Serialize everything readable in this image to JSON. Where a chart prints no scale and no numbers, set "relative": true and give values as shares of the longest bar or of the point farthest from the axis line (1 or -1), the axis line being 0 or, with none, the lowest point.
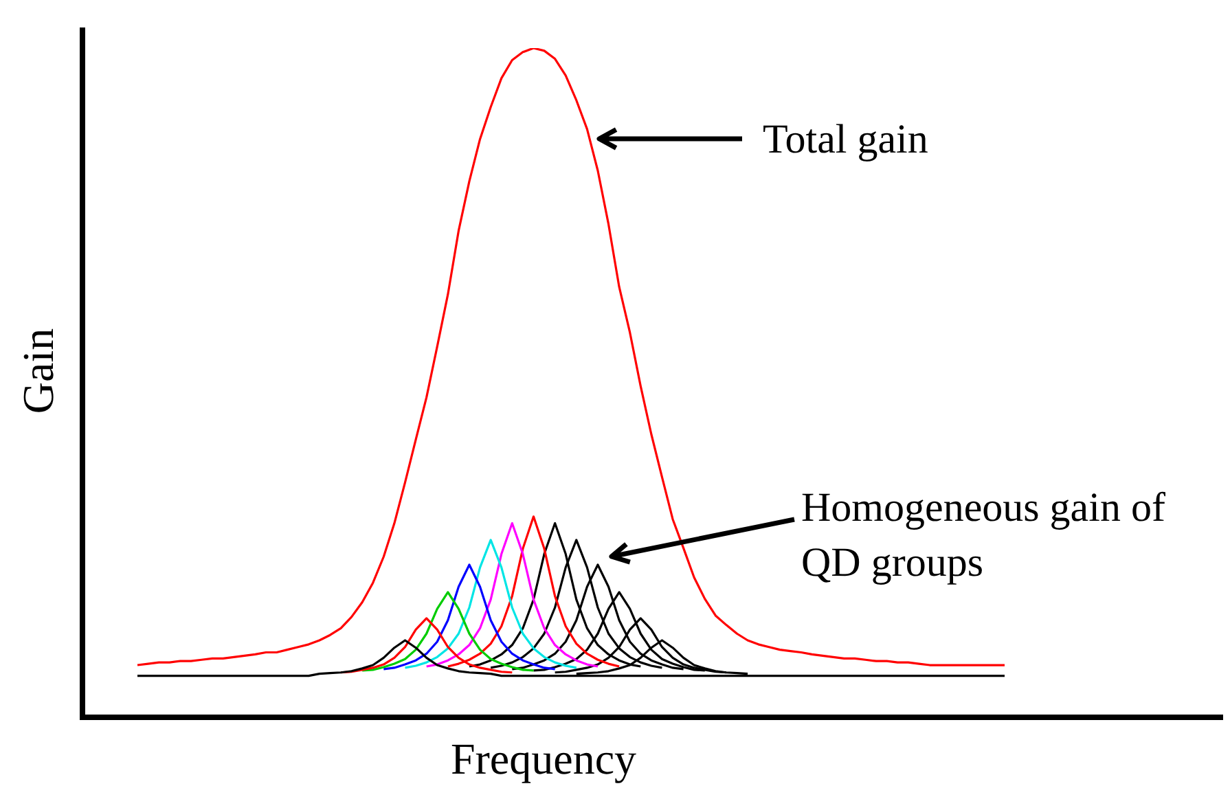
{
  "chart_data": {
    "type": "line",
    "relative": true,
    "xlabel": "Frequency",
    "ylabel": "Gain",
    "annotations": [
      "Total gain",
      "Homogeneous gain of QD groups"
    ],
    "categories": [
      null,
      null,
      null,
      null,
      null,
      null,
      null,
      null,
      null,
      null,
      null,
      null,
      null,
      null,
      null,
      null,
      null,
      null,
      null,
      null,
      null,
      null,
      null,
      null,
      null,
      null,
      null,
      null,
      null,
      null,
      null,
      null,
      null,
      null,
      null,
      null,
      null,
      null,
      null,
      null,
      null,
      null,
      null,
      null,
      null,
      null,
      null,
      null,
      null,
      null,
      null,
      null,
      null,
      null,
      null,
      null,
      null,
      null,
      null,
      null,
      null,
      null,
      null,
      null,
      null,
      null,
      null,
      null,
      null,
      null,
      null,
      null,
      null,
      null,
      null,
      null,
      null,
      null,
      null,
      null,
      null,
      null
    ],
    "series": [
      {
        "color": "#000000",
        "values": [
          0.062,
          0.062,
          0.062,
          0.062,
          0.062,
          0.062,
          0.062,
          0.062,
          0.062,
          0.062,
          0.062,
          0.062,
          0.062,
          0.062,
          0.062,
          0.062,
          0.062,
          0.065,
          0.066,
          0.067,
          0.069,
          0.073,
          0.078,
          0.089,
          0.104,
          0.115,
          0.104,
          0.089,
          0.078,
          0.073,
          0.069,
          0.067,
          0.066,
          0.065,
          0.062,
          0.062,
          0.062,
          0.062,
          0.062,
          0.062,
          0.062,
          0.062,
          0.062,
          0.062,
          0.062,
          0.062,
          0.062,
          0.062,
          0.062,
          0.062,
          0.062,
          0.062,
          0.062,
          0.062,
          0.062,
          0.062,
          0.062,
          0.062,
          0.062,
          0.062,
          0.062,
          0.062,
          0.062,
          0.062,
          0.062,
          0.062,
          0.062,
          0.062,
          0.062,
          0.062,
          0.062,
          0.062,
          0.062,
          0.062,
          0.062,
          0.062,
          0.062,
          0.062,
          0.062,
          0.062,
          0.062,
          0.062
        ]
      },
      {
        "color": "#ff0000",
        "values": [
          null,
          null,
          null,
          null,
          null,
          null,
          null,
          null,
          null,
          null,
          null,
          null,
          null,
          null,
          null,
          null,
          null,
          null,
          null,
          0.067,
          0.068,
          0.071,
          0.074,
          0.079,
          0.089,
          0.105,
          0.131,
          0.148,
          0.131,
          0.105,
          0.089,
          0.079,
          0.074,
          0.071,
          0.068,
          0.067,
          null,
          null,
          null,
          null,
          null,
          null,
          null,
          null,
          null,
          null,
          null,
          null,
          null,
          null,
          null,
          null,
          null,
          null,
          null,
          null,
          null,
          null,
          null,
          null,
          null,
          null,
          null,
          null,
          null,
          null,
          null,
          null,
          null,
          null,
          null,
          null,
          null,
          null,
          null,
          null,
          null,
          null,
          null,
          null,
          null,
          null
        ]
      },
      {
        "color": "#00cc00",
        "values": [
          null,
          null,
          null,
          null,
          null,
          null,
          null,
          null,
          null,
          null,
          null,
          null,
          null,
          null,
          null,
          null,
          null,
          null,
          null,
          null,
          null,
          0.07,
          0.071,
          0.075,
          0.08,
          0.087,
          0.101,
          0.125,
          0.162,
          0.187,
          0.162,
          0.125,
          0.101,
          0.087,
          0.08,
          0.075,
          0.071,
          0.07,
          null,
          null,
          null,
          null,
          null,
          null,
          null,
          null,
          null,
          null,
          null,
          null,
          null,
          null,
          null,
          null,
          null,
          null,
          null,
          null,
          null,
          null,
          null,
          null,
          null,
          null,
          null,
          null,
          null,
          null,
          null,
          null,
          null,
          null,
          null,
          null,
          null,
          null,
          null,
          null,
          null,
          null,
          null,
          null
        ]
      },
      {
        "color": "#0000ff",
        "values": [
          null,
          null,
          null,
          null,
          null,
          null,
          null,
          null,
          null,
          null,
          null,
          null,
          null,
          null,
          null,
          null,
          null,
          null,
          null,
          null,
          null,
          null,
          null,
          0.072,
          0.074,
          0.079,
          0.085,
          0.095,
          0.113,
          0.145,
          0.195,
          0.228,
          0.195,
          0.145,
          0.113,
          0.095,
          0.085,
          0.079,
          0.074,
          0.072,
          null,
          null,
          null,
          null,
          null,
          null,
          null,
          null,
          null,
          null,
          null,
          null,
          null,
          null,
          null,
          null,
          null,
          null,
          null,
          null,
          null,
          null,
          null,
          null,
          null,
          null,
          null,
          null,
          null,
          null,
          null,
          null,
          null,
          null,
          null,
          null,
          null,
          null,
          null,
          null,
          null,
          null
        ]
      },
      {
        "color": "#00e5e5",
        "values": [
          null,
          null,
          null,
          null,
          null,
          null,
          null,
          null,
          null,
          null,
          null,
          null,
          null,
          null,
          null,
          null,
          null,
          null,
          null,
          null,
          null,
          null,
          null,
          null,
          null,
          0.074,
          0.077,
          0.082,
          0.09,
          0.103,
          0.125,
          0.164,
          0.224,
          0.265,
          0.224,
          0.164,
          0.125,
          0.103,
          0.09,
          0.082,
          0.077,
          0.074,
          null,
          null,
          null,
          null,
          null,
          null,
          null,
          null,
          null,
          null,
          null,
          null,
          null,
          null,
          null,
          null,
          null,
          null,
          null,
          null,
          null,
          null,
          null,
          null,
          null,
          null,
          null,
          null,
          null,
          null,
          null,
          null,
          null,
          null,
          null,
          null,
          null,
          null,
          null,
          null
        ]
      },
      {
        "color": "#ff00ff",
        "values": [
          null,
          null,
          null,
          null,
          null,
          null,
          null,
          null,
          null,
          null,
          null,
          null,
          null,
          null,
          null,
          null,
          null,
          null,
          null,
          null,
          null,
          null,
          null,
          null,
          null,
          null,
          null,
          0.076,
          0.079,
          0.085,
          0.094,
          0.108,
          0.133,
          0.176,
          0.244,
          0.29,
          0.244,
          0.176,
          0.133,
          0.108,
          0.094,
          0.085,
          0.079,
          0.076,
          null,
          null,
          null,
          null,
          null,
          null,
          null,
          null,
          null,
          null,
          null,
          null,
          null,
          null,
          null,
          null,
          null,
          null,
          null,
          null,
          null,
          null,
          null,
          null,
          null,
          null,
          null,
          null,
          null,
          null,
          null,
          null,
          null,
          null,
          null,
          null,
          null,
          null
        ]
      },
      {
        "color": "#ff0000",
        "values": [
          null,
          null,
          null,
          null,
          null,
          null,
          null,
          null,
          null,
          null,
          null,
          null,
          null,
          null,
          null,
          null,
          null,
          null,
          null,
          null,
          null,
          null,
          null,
          null,
          null,
          null,
          null,
          null,
          null,
          0.076,
          0.08,
          0.086,
          0.095,
          0.11,
          0.136,
          0.181,
          0.252,
          0.3,
          0.252,
          0.181,
          0.136,
          0.11,
          0.095,
          0.086,
          0.08,
          0.076,
          null,
          null,
          null,
          null,
          null,
          null,
          null,
          null,
          null,
          null,
          null,
          null,
          null,
          null,
          null,
          null,
          null,
          null,
          null,
          null,
          null,
          null,
          null,
          null,
          null,
          null,
          null,
          null,
          null,
          null,
          null,
          null,
          null,
          null,
          null,
          null
        ]
      },
      {
        "color": "#000000",
        "values": [
          null,
          null,
          null,
          null,
          null,
          null,
          null,
          null,
          null,
          null,
          null,
          null,
          null,
          null,
          null,
          null,
          null,
          null,
          null,
          null,
          null,
          null,
          null,
          null,
          null,
          null,
          null,
          null,
          null,
          null,
          null,
          0.076,
          0.079,
          0.085,
          0.094,
          0.108,
          0.133,
          0.176,
          0.244,
          0.29,
          0.244,
          0.176,
          0.133,
          0.108,
          0.094,
          0.085,
          0.079,
          0.076,
          null,
          null,
          null,
          null,
          null,
          null,
          null,
          null,
          null,
          null,
          null,
          null,
          null,
          null,
          null,
          null,
          null,
          null,
          null,
          null,
          null,
          null,
          null,
          null,
          null,
          null,
          null,
          null,
          null,
          null,
          null,
          null,
          null,
          null
        ]
      },
      {
        "color": "#000000",
        "values": [
          null,
          null,
          null,
          null,
          null,
          null,
          null,
          null,
          null,
          null,
          null,
          null,
          null,
          null,
          null,
          null,
          null,
          null,
          null,
          null,
          null,
          null,
          null,
          null,
          null,
          null,
          null,
          null,
          null,
          null,
          null,
          null,
          null,
          0.074,
          0.077,
          0.082,
          0.09,
          0.103,
          0.125,
          0.164,
          0.224,
          0.265,
          0.224,
          0.164,
          0.125,
          0.103,
          0.09,
          0.082,
          0.077,
          0.074,
          null,
          null,
          null,
          null,
          null,
          null,
          null,
          null,
          null,
          null,
          null,
          null,
          null,
          null,
          null,
          null,
          null,
          null,
          null,
          null,
          null,
          null,
          null,
          null,
          null,
          null,
          null,
          null,
          null,
          null,
          null,
          null
        ]
      },
      {
        "color": "#000000",
        "values": [
          null,
          null,
          null,
          null,
          null,
          null,
          null,
          null,
          null,
          null,
          null,
          null,
          null,
          null,
          null,
          null,
          null,
          null,
          null,
          null,
          null,
          null,
          null,
          null,
          null,
          null,
          null,
          null,
          null,
          null,
          null,
          null,
          null,
          null,
          null,
          0.072,
          0.074,
          0.079,
          0.085,
          0.095,
          0.113,
          0.145,
          0.195,
          0.228,
          0.195,
          0.145,
          0.113,
          0.095,
          0.085,
          0.079,
          0.074,
          0.072,
          null,
          null,
          null,
          null,
          null,
          null,
          null,
          null,
          null,
          null,
          null,
          null,
          null,
          null,
          null,
          null,
          null,
          null,
          null,
          null,
          null,
          null,
          null,
          null,
          null,
          null,
          null,
          null,
          null,
          null
        ]
      },
      {
        "color": "#000000",
        "values": [
          null,
          null,
          null,
          null,
          null,
          null,
          null,
          null,
          null,
          null,
          null,
          null,
          null,
          null,
          null,
          null,
          null,
          null,
          null,
          null,
          null,
          null,
          null,
          null,
          null,
          null,
          null,
          null,
          null,
          null,
          null,
          null,
          null,
          null,
          null,
          null,
          null,
          0.07,
          0.071,
          0.075,
          0.08,
          0.087,
          0.101,
          0.125,
          0.162,
          0.187,
          0.162,
          0.125,
          0.101,
          0.087,
          0.08,
          0.075,
          0.071,
          0.07,
          null,
          null,
          null,
          null,
          null,
          null,
          null,
          null,
          null,
          null,
          null,
          null,
          null,
          null,
          null,
          null,
          null,
          null,
          null,
          null,
          null,
          null,
          null,
          null,
          null,
          null,
          null,
          null
        ]
      },
      {
        "color": "#000000",
        "values": [
          null,
          null,
          null,
          null,
          null,
          null,
          null,
          null,
          null,
          null,
          null,
          null,
          null,
          null,
          null,
          null,
          null,
          null,
          null,
          null,
          null,
          null,
          null,
          null,
          null,
          null,
          null,
          null,
          null,
          null,
          null,
          null,
          null,
          null,
          null,
          null,
          null,
          null,
          null,
          0.067,
          0.068,
          0.071,
          0.074,
          0.079,
          0.089,
          0.105,
          0.131,
          0.148,
          0.131,
          0.105,
          0.089,
          0.079,
          0.074,
          0.071,
          0.068,
          0.067,
          null,
          null,
          null,
          null,
          null,
          null,
          null,
          null,
          null,
          null,
          null,
          null,
          null,
          null,
          null,
          null,
          null,
          null,
          null,
          null,
          null,
          null,
          null,
          null,
          null,
          null
        ]
      },
      {
        "color": "#000000",
        "values": [
          null,
          null,
          null,
          null,
          null,
          null,
          null,
          null,
          null,
          null,
          null,
          null,
          null,
          null,
          null,
          null,
          null,
          null,
          null,
          null,
          null,
          null,
          null,
          null,
          null,
          null,
          null,
          null,
          null,
          null,
          null,
          null,
          null,
          null,
          null,
          null,
          null,
          null,
          null,
          null,
          null,
          0.065,
          0.066,
          0.067,
          0.069,
          0.073,
          0.078,
          0.089,
          0.104,
          0.115,
          0.104,
          0.089,
          0.078,
          0.073,
          0.069,
          0.067,
          0.066,
          0.065,
          null,
          null,
          null,
          null,
          null,
          null,
          null,
          null,
          null,
          null,
          null,
          null,
          null,
          null,
          null,
          null,
          null,
          null,
          null,
          null,
          null,
          null,
          null,
          null
        ]
      },
      {
        "color": "#ff0000",
        "values": [
          0.078,
          0.08,
          0.082,
          0.082,
          0.084,
          0.084,
          0.086,
          0.088,
          0.088,
          0.09,
          0.092,
          0.094,
          0.097,
          0.097,
          0.101,
          0.105,
          0.109,
          0.115,
          0.123,
          0.133,
          0.15,
          0.172,
          0.201,
          0.24,
          0.29,
          0.351,
          0.415,
          0.478,
          0.554,
          0.632,
          0.727,
          0.801,
          0.864,
          0.912,
          0.955,
          0.982,
          0.994,
          1,
          0.996,
          0.984,
          0.959,
          0.922,
          0.879,
          0.817,
          0.737,
          0.643,
          0.575,
          0.495,
          0.423,
          0.359,
          0.296,
          0.253,
          0.209,
          0.177,
          0.152,
          0.138,
          0.125,
          0.115,
          0.109,
          0.105,
          0.101,
          0.099,
          0.097,
          0.094,
          0.092,
          0.09,
          0.088,
          0.088,
          0.086,
          0.084,
          0.084,
          0.082,
          0.082,
          0.08,
          0.078,
          0.078,
          0.078,
          0.078,
          0.078,
          0.078,
          0.078,
          0.078
        ]
      }
    ]
  }
}
